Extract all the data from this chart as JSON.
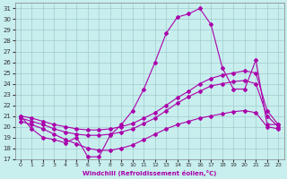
{
  "xlabel": "Windchill (Refroidissement éolien,°C)",
  "xlim": [
    -0.5,
    23.5
  ],
  "ylim": [
    17,
    31.5
  ],
  "yticks": [
    17,
    18,
    19,
    20,
    21,
    22,
    23,
    24,
    25,
    26,
    27,
    28,
    29,
    30,
    31
  ],
  "xticks": [
    0,
    1,
    2,
    3,
    4,
    5,
    6,
    7,
    8,
    9,
    10,
    11,
    12,
    13,
    14,
    15,
    16,
    17,
    18,
    19,
    20,
    21,
    22,
    23
  ],
  "bg_color": "#c8eeee",
  "grid_color": "#a0cccc",
  "line_color": "#aa00aa",
  "line1_x": [
    0,
    1,
    2,
    3,
    4,
    5,
    6,
    7,
    8,
    9,
    10,
    11,
    12,
    13,
    14,
    15,
    16,
    17,
    18,
    19,
    20,
    21,
    22,
    23
  ],
  "line1_y": [
    21.0,
    19.8,
    19.0,
    18.8,
    18.5,
    19.0,
    17.2,
    17.2,
    19.2,
    20.2,
    21.5,
    23.5,
    26.0,
    28.7,
    30.2,
    30.5,
    31.0,
    29.5,
    25.5,
    23.5,
    23.5,
    26.2,
    20.2,
    20.2
  ],
  "line2_x": [
    0,
    1,
    2,
    3,
    4,
    5,
    6,
    7,
    8,
    9,
    10,
    11,
    12,
    13,
    14,
    15,
    16,
    17,
    18,
    19,
    20,
    21,
    22,
    23
  ],
  "line2_y": [
    21.0,
    20.8,
    20.5,
    20.2,
    20.0,
    19.8,
    19.7,
    19.7,
    19.8,
    20.0,
    20.3,
    20.8,
    21.3,
    22.0,
    22.7,
    23.3,
    24.0,
    24.5,
    24.8,
    25.0,
    25.2,
    25.0,
    21.5,
    20.2
  ],
  "line3_x": [
    0,
    1,
    2,
    3,
    4,
    5,
    6,
    7,
    8,
    9,
    10,
    11,
    12,
    13,
    14,
    15,
    16,
    17,
    18,
    19,
    20,
    21,
    22,
    23
  ],
  "line3_y": [
    20.8,
    20.5,
    20.2,
    19.8,
    19.5,
    19.3,
    19.2,
    19.2,
    19.3,
    19.5,
    19.8,
    20.3,
    20.8,
    21.5,
    22.2,
    22.8,
    23.3,
    23.8,
    24.0,
    24.2,
    24.3,
    24.0,
    21.0,
    20.0
  ],
  "line4_x": [
    0,
    1,
    2,
    3,
    4,
    5,
    6,
    7,
    8,
    9,
    10,
    11,
    12,
    13,
    14,
    15,
    16,
    17,
    18,
    19,
    20,
    21,
    22,
    23
  ],
  "line4_y": [
    20.5,
    20.2,
    19.8,
    19.3,
    18.8,
    18.4,
    18.0,
    17.8,
    17.8,
    18.0,
    18.3,
    18.8,
    19.3,
    19.8,
    20.2,
    20.5,
    20.8,
    21.0,
    21.2,
    21.4,
    21.5,
    21.3,
    20.0,
    19.8
  ]
}
